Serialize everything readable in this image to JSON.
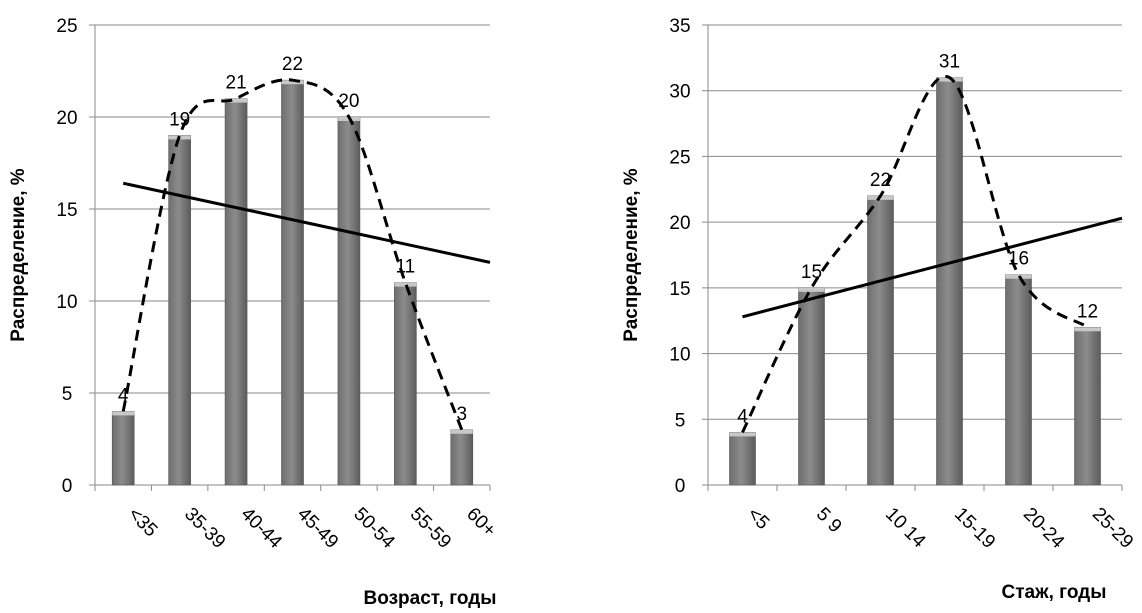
{
  "chart_data": [
    {
      "type": "bar",
      "categories": [
        "<35",
        "35-39",
        "40-44",
        "45-49",
        "50-54",
        "55-59",
        "60+"
      ],
      "values": [
        4,
        19,
        21,
        22,
        20,
        11,
        3
      ],
      "data_labels": [
        "4",
        "19",
        "21",
        "22",
        "20",
        "11",
        "3"
      ],
      "title": "",
      "xlabel": "Возраст, годы",
      "ylabel": "Распределение, %",
      "ylim": [
        0,
        25
      ],
      "yticks": [
        0,
        5,
        10,
        15,
        20,
        25
      ],
      "grid": true,
      "legend": "none",
      "bar_color": "#8c8c8c",
      "overlays": [
        {
          "kind": "linear-trend",
          "style": "solid",
          "color": "#000000",
          "x": [
            "<35",
            "60+"
          ],
          "y": [
            16.4,
            12.1
          ]
        },
        {
          "kind": "smoothed-curve",
          "style": "dashed",
          "color": "#000000",
          "through": "values"
        }
      ]
    },
    {
      "type": "bar",
      "categories": [
        "<5",
        "5 9",
        "10 14",
        "15-19",
        "20-24",
        "25-29"
      ],
      "values": [
        4,
        15,
        22,
        31,
        16,
        12
      ],
      "data_labels": [
        "4",
        "15",
        "22",
        "31",
        "16",
        "12"
      ],
      "title": "",
      "xlabel": "Стаж, годы",
      "ylabel": "Распределение, %",
      "ylim": [
        0,
        35
      ],
      "yticks": [
        0,
        5,
        10,
        15,
        20,
        25,
        30,
        35
      ],
      "grid": true,
      "legend": "none",
      "bar_color": "#8c8c8c",
      "overlays": [
        {
          "kind": "linear-trend",
          "style": "solid",
          "color": "#000000",
          "x": [
            "<5",
            "25-29"
          ],
          "y": [
            12.8,
            20.3
          ]
        },
        {
          "kind": "smoothed-curve",
          "style": "dashed",
          "color": "#000000",
          "through": "values"
        }
      ]
    }
  ]
}
